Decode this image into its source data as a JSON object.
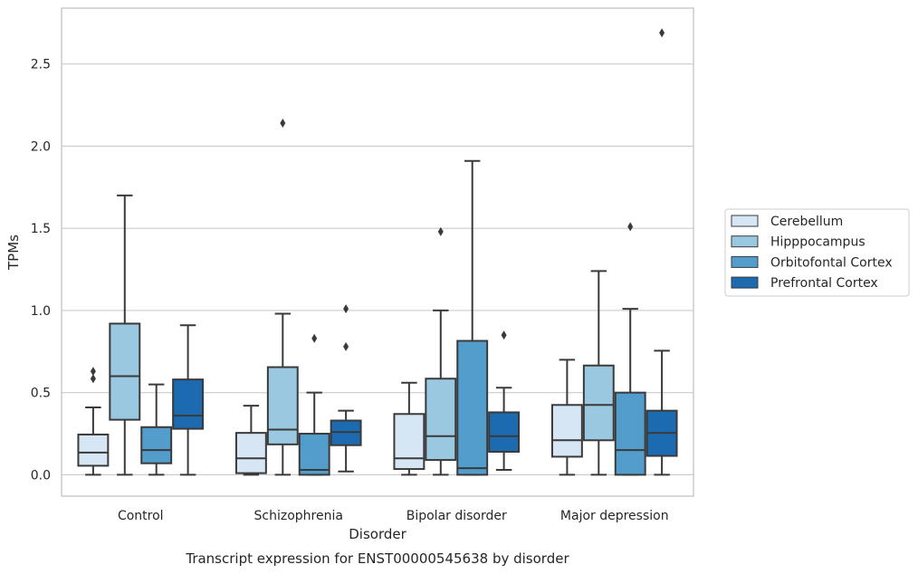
{
  "chart_data": {
    "type": "box",
    "title": "",
    "caption": "Transcript expression for ENST00000545638 by disorder",
    "xlabel": "Disorder",
    "ylabel": "TPMs",
    "ylim": [
      -0.13,
      2.84
    ],
    "yticks": [
      "0.0",
      "0.5",
      "1.0",
      "1.5",
      "2.0",
      "2.5"
    ],
    "grid": "horizontal",
    "legend_position": "right",
    "categories": [
      "Control",
      "Schizophrenia",
      "Bipolar disorder",
      "Major depression"
    ],
    "series": [
      {
        "name": "Cerebellum",
        "color": "#d6e6f4",
        "boxes": [
          {
            "whisker_low": 0.0,
            "q1": 0.055,
            "median": 0.135,
            "q3": 0.245,
            "whisker_high": 0.41,
            "outliers": [
              0.585,
              0.63
            ]
          },
          {
            "whisker_low": 0.0,
            "q1": 0.01,
            "median": 0.1,
            "q3": 0.255,
            "whisker_high": 0.42,
            "outliers": []
          },
          {
            "whisker_low": 0.0,
            "q1": 0.035,
            "median": 0.1,
            "q3": 0.37,
            "whisker_high": 0.56,
            "outliers": []
          },
          {
            "whisker_low": 0.0,
            "q1": 0.11,
            "median": 0.21,
            "q3": 0.425,
            "whisker_high": 0.7,
            "outliers": []
          }
        ]
      },
      {
        "name": "Hipppocampus",
        "color": "#9ac8e0",
        "boxes": [
          {
            "whisker_low": 0.0,
            "q1": 0.335,
            "median": 0.6,
            "q3": 0.92,
            "whisker_high": 1.7,
            "outliers": []
          },
          {
            "whisker_low": 0.0,
            "q1": 0.185,
            "median": 0.275,
            "q3": 0.655,
            "whisker_high": 0.98,
            "outliers": [
              2.14
            ]
          },
          {
            "whisker_low": 0.0,
            "q1": 0.09,
            "median": 0.235,
            "q3": 0.585,
            "whisker_high": 1.0,
            "outliers": [
              1.48
            ]
          },
          {
            "whisker_low": 0.0,
            "q1": 0.21,
            "median": 0.425,
            "q3": 0.665,
            "whisker_high": 1.24,
            "outliers": []
          }
        ]
      },
      {
        "name": "Orbitofontal Cortex",
        "color": "#529dcc",
        "boxes": [
          {
            "whisker_low": 0.0,
            "q1": 0.07,
            "median": 0.15,
            "q3": 0.29,
            "whisker_high": 0.55,
            "outliers": []
          },
          {
            "whisker_low": 0.0,
            "q1": 0.0,
            "median": 0.03,
            "q3": 0.25,
            "whisker_high": 0.5,
            "outliers": [
              0.83
            ]
          },
          {
            "whisker_low": 0.0,
            "q1": 0.0,
            "median": 0.04,
            "q3": 0.815,
            "whisker_high": 1.91,
            "outliers": []
          },
          {
            "whisker_low": 0.0,
            "q1": 0.0,
            "median": 0.15,
            "q3": 0.5,
            "whisker_high": 1.01,
            "outliers": [
              1.51
            ]
          }
        ]
      },
      {
        "name": "Prefrontal Cortex",
        "color": "#1c6aaf",
        "boxes": [
          {
            "whisker_low": 0.0,
            "q1": 0.28,
            "median": 0.36,
            "q3": 0.58,
            "whisker_high": 0.91,
            "outliers": []
          },
          {
            "whisker_low": 0.02,
            "q1": 0.18,
            "median": 0.26,
            "q3": 0.33,
            "whisker_high": 0.39,
            "outliers": [
              0.78,
              1.01
            ]
          },
          {
            "whisker_low": 0.03,
            "q1": 0.14,
            "median": 0.235,
            "q3": 0.38,
            "whisker_high": 0.53,
            "outliers": [
              0.85
            ]
          },
          {
            "whisker_low": 0.0,
            "q1": 0.115,
            "median": 0.255,
            "q3": 0.39,
            "whisker_high": 0.755,
            "outliers": [
              2.69
            ]
          }
        ]
      }
    ]
  }
}
